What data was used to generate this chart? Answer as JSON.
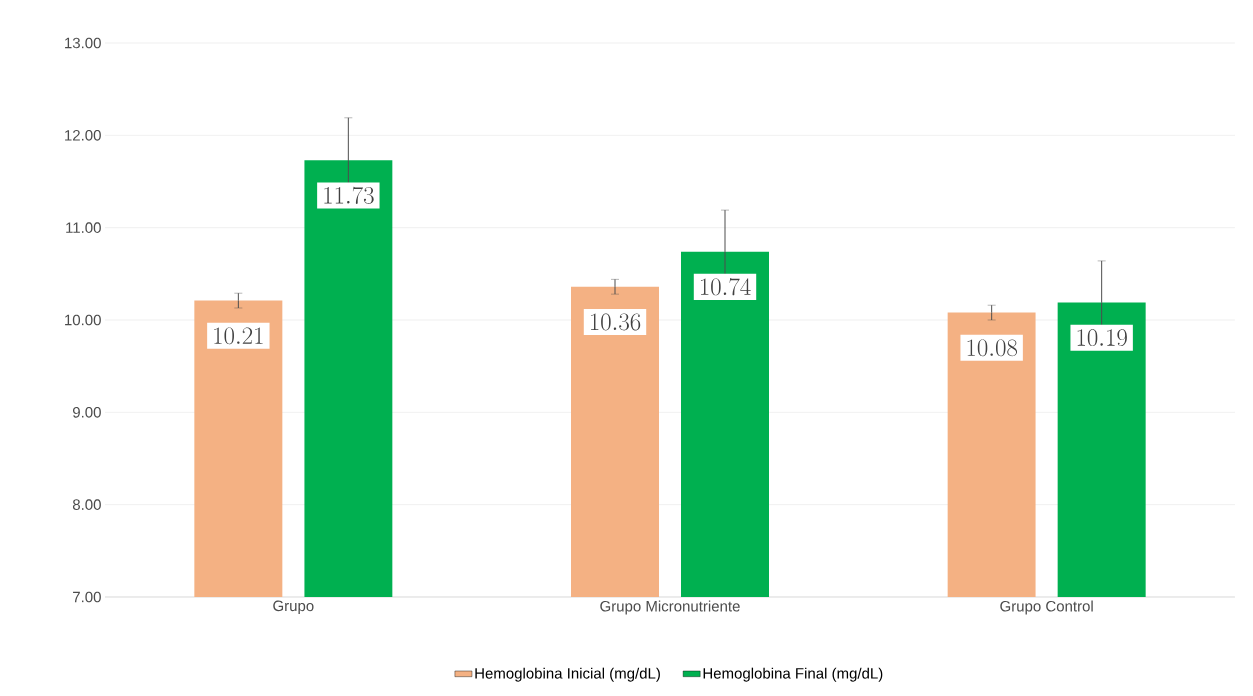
{
  "chart_data": {
    "type": "bar",
    "categories": [
      "Grupo",
      "Grupo Micronutriente",
      "Grupo Control"
    ],
    "series": [
      {
        "name": "Hemoglobina Inicial (mg/dL)",
        "color": "#f4b183",
        "values": [
          10.21,
          10.36,
          10.08
        ],
        "errors": [
          0.08,
          0.08,
          0.08
        ]
      },
      {
        "name": "Hemoglobina Final (mg/dL)",
        "color": "#00b050",
        "values": [
          11.73,
          10.74,
          10.19
        ],
        "errors": [
          0.46,
          0.45,
          0.45
        ]
      }
    ],
    "ylim": [
      7,
      13
    ],
    "yticks": [
      {
        "value": 7,
        "label": "7.00"
      },
      {
        "value": 8,
        "label": "8.00"
      },
      {
        "value": 9,
        "label": "9.00"
      },
      {
        "value": 10,
        "label": "10.00"
      },
      {
        "value": 11,
        "label": "11.00"
      },
      {
        "value": 12,
        "label": "12.00"
      },
      {
        "value": 13,
        "label": "13.00"
      }
    ],
    "grid": "y",
    "legend": "bottom",
    "data_labels": true
  }
}
